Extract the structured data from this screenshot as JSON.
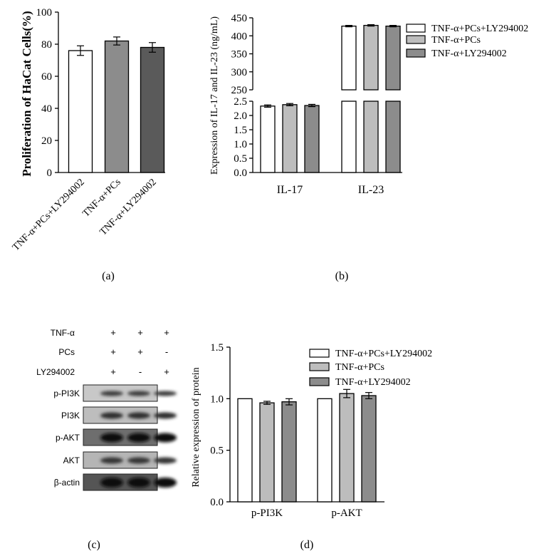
{
  "colors": {
    "white": "#ffffff",
    "light_gray": "#bdbdbd",
    "mid_gray": "#8c8c8c",
    "dark_gray": "#5a5a5a",
    "axis": "#000000"
  },
  "chart_data": [
    {
      "id": "a",
      "panel_label": "(a)",
      "type": "bar",
      "ylabel": "Proliferation of HaCat Cells(%)",
      "xlabel": "",
      "ylim": [
        0,
        100
      ],
      "yticks": [
        0,
        20,
        40,
        60,
        80,
        100
      ],
      "categories": [
        "TNF-α+PCs+LY294002",
        "TNF-α+PCs",
        "TNF-α+LY294002"
      ],
      "values": [
        76,
        82,
        78
      ],
      "errors": [
        3,
        2.5,
        3
      ],
      "bar_colors": [
        "#ffffff",
        "#8c8c8c",
        "#5a5a5a"
      ]
    },
    {
      "id": "b",
      "panel_label": "(b)",
      "type": "bar",
      "ylabel": "Expression of IL-17 and IL-23 (ng/mL)",
      "categories": [
        "IL-17",
        "IL-23"
      ],
      "axis_break": {
        "lower_range": [
          0,
          2.5
        ],
        "upper_range": [
          250,
          450
        ]
      },
      "lower_ticks": [
        "0.0",
        "0.5",
        "1.0",
        "1.5",
        "2.0",
        "2.5"
      ],
      "upper_ticks": [
        "250",
        "300",
        "350",
        "400",
        "450"
      ],
      "series": [
        {
          "name": "TNF-α+PCs+LY294002",
          "values": [
            2.33,
            427
          ],
          "errors": [
            0.04,
            2
          ],
          "color": "#ffffff"
        },
        {
          "name": "TNF-α+PCs",
          "values": [
            2.38,
            429
          ],
          "errors": [
            0.04,
            2
          ],
          "color": "#bdbdbd"
        },
        {
          "name": "TNF-α+LY294002",
          "values": [
            2.35,
            427
          ],
          "errors": [
            0.04,
            2
          ],
          "color": "#8c8c8c"
        }
      ],
      "legend_position": "top-right"
    },
    {
      "id": "d",
      "panel_label": "(d)",
      "type": "bar",
      "ylabel": "Relative expression of protein",
      "ylim": [
        0,
        1.5
      ],
      "yticks": [
        "0.0",
        "0.5",
        "1.0",
        "1.5"
      ],
      "categories": [
        "p-PI3K",
        "p-AKT"
      ],
      "series": [
        {
          "name": "TNF-α+PCs+LY294002",
          "values": [
            1.0,
            1.0
          ],
          "errors": [
            0,
            0
          ],
          "color": "#ffffff"
        },
        {
          "name": "TNF-α+PCs",
          "values": [
            0.96,
            1.05
          ],
          "errors": [
            0.015,
            0.04
          ],
          "color": "#bdbdbd"
        },
        {
          "name": "TNF-α+LY294002",
          "values": [
            0.97,
            1.03
          ],
          "errors": [
            0.03,
            0.03
          ],
          "color": "#8c8c8c"
        }
      ],
      "legend_position": "top-right"
    }
  ],
  "western_blot": {
    "panel_label": "(c)",
    "conditions": [
      {
        "label": "TNF-α",
        "marks": [
          "+",
          "+",
          "+"
        ]
      },
      {
        "label": "PCs",
        "marks": [
          "+",
          "+",
          "-"
        ]
      },
      {
        "label": "LY294002",
        "marks": [
          "+",
          "-",
          "+"
        ]
      }
    ],
    "bands": [
      "p-PI3K",
      "PI3K",
      "p-AKT",
      "AKT",
      "β-actin"
    ]
  }
}
